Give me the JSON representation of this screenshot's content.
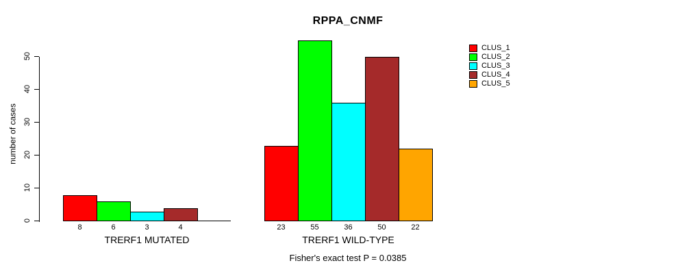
{
  "chart_data": {
    "type": "bar",
    "title": "RPPA_CNMF",
    "ylabel": "number of cases",
    "xlabel": "",
    "ylim": [
      0,
      55
    ],
    "yticks": [
      0,
      10,
      20,
      30,
      40,
      50
    ],
    "grid": false,
    "legend_position": "right",
    "legend": [
      {
        "label": "CLUS_1",
        "color": "#ff0000"
      },
      {
        "label": "CLUS_2",
        "color": "#00ff00"
      },
      {
        "label": "CLUS_3",
        "color": "#00ffff"
      },
      {
        "label": "CLUS_4",
        "color": "#a52a2a"
      },
      {
        "label": "CLUS_5",
        "color": "#ffa500"
      }
    ],
    "groups": [
      {
        "label": "TRERF1 MUTATED",
        "values": [
          8,
          6,
          3,
          4,
          0
        ],
        "bar_labels": [
          "8",
          "6",
          "3",
          "4",
          ""
        ]
      },
      {
        "label": "TRERF1 WILD-TYPE",
        "values": [
          23,
          55,
          36,
          50,
          22
        ],
        "bar_labels": [
          "23",
          "55",
          "36",
          "50",
          "22"
        ]
      }
    ],
    "annotation": "Fisher's exact test P = 0.0385"
  }
}
